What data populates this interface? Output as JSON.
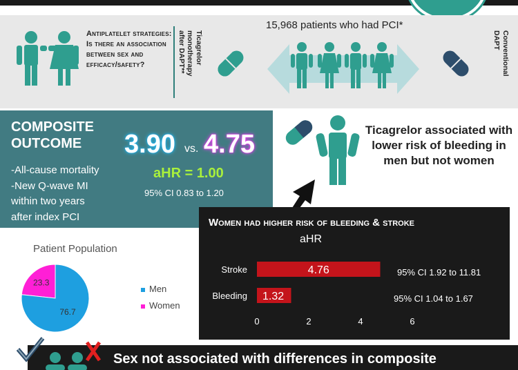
{
  "header": {
    "question": "Antiplatelet strategies: Is there an association between sex and efficacy/safety?",
    "arm_left": [
      "Ticagrelor",
      "monotherapy",
      "after DAPT**"
    ],
    "arm_right": [
      "Conventional",
      "DAPT"
    ],
    "patients": "15,968 patients who had PCI*"
  },
  "composite": {
    "title_line1": "COMPOSITE",
    "title_line2": "OUTCOME",
    "items": [
      "-All-cause mortality",
      "-New Q-wave MI",
      "within two years",
      "after index PCI"
    ],
    "rate_a": "3.90",
    "vs": "vs.",
    "rate_b": "4.75",
    "ahr": "aHR = 1.00",
    "ci": "95% CI 0.83 to 1.20"
  },
  "bleeding_note": "Ticagrelor associated with lower risk of bleeding in men but not women",
  "women_panel": {
    "title": "Women had higher risk of bleeding & stroke",
    "ahr_label": "aHR"
  },
  "population": {
    "title": "Patient Population",
    "legend": [
      "Men",
      "Women"
    ]
  },
  "colors": {
    "teal": "#2f9e8f",
    "panel": "#417b82",
    "bar": "#c4141b",
    "men": "#1e9fe0",
    "women": "#ff1fd6"
  },
  "chart_data": [
    {
      "type": "bar",
      "orientation": "horizontal",
      "categories": [
        "Stroke",
        "Bleeding"
      ],
      "values": [
        4.76,
        1.32
      ],
      "value_labels": [
        "4.76",
        "1.32"
      ],
      "ci_labels": [
        "95% CI 1.92 to 11.81",
        "95% CI 1.04 to 1.67"
      ],
      "xticks": [
        "0",
        "2",
        "4",
        "6"
      ],
      "xlim": [
        0,
        6
      ],
      "title": "Women had higher risk of bleeding & stroke",
      "xlabel": "",
      "ylabel": ""
    },
    {
      "type": "pie",
      "title": "Patient Population",
      "labels": [
        "Men",
        "Women"
      ],
      "values": [
        76.7,
        23.3
      ],
      "value_labels": [
        "76.7",
        "23.3"
      ],
      "colors": [
        "#1e9fe0",
        "#ff1fd6"
      ]
    }
  ],
  "footer": "Sex not associated with differences in composite"
}
